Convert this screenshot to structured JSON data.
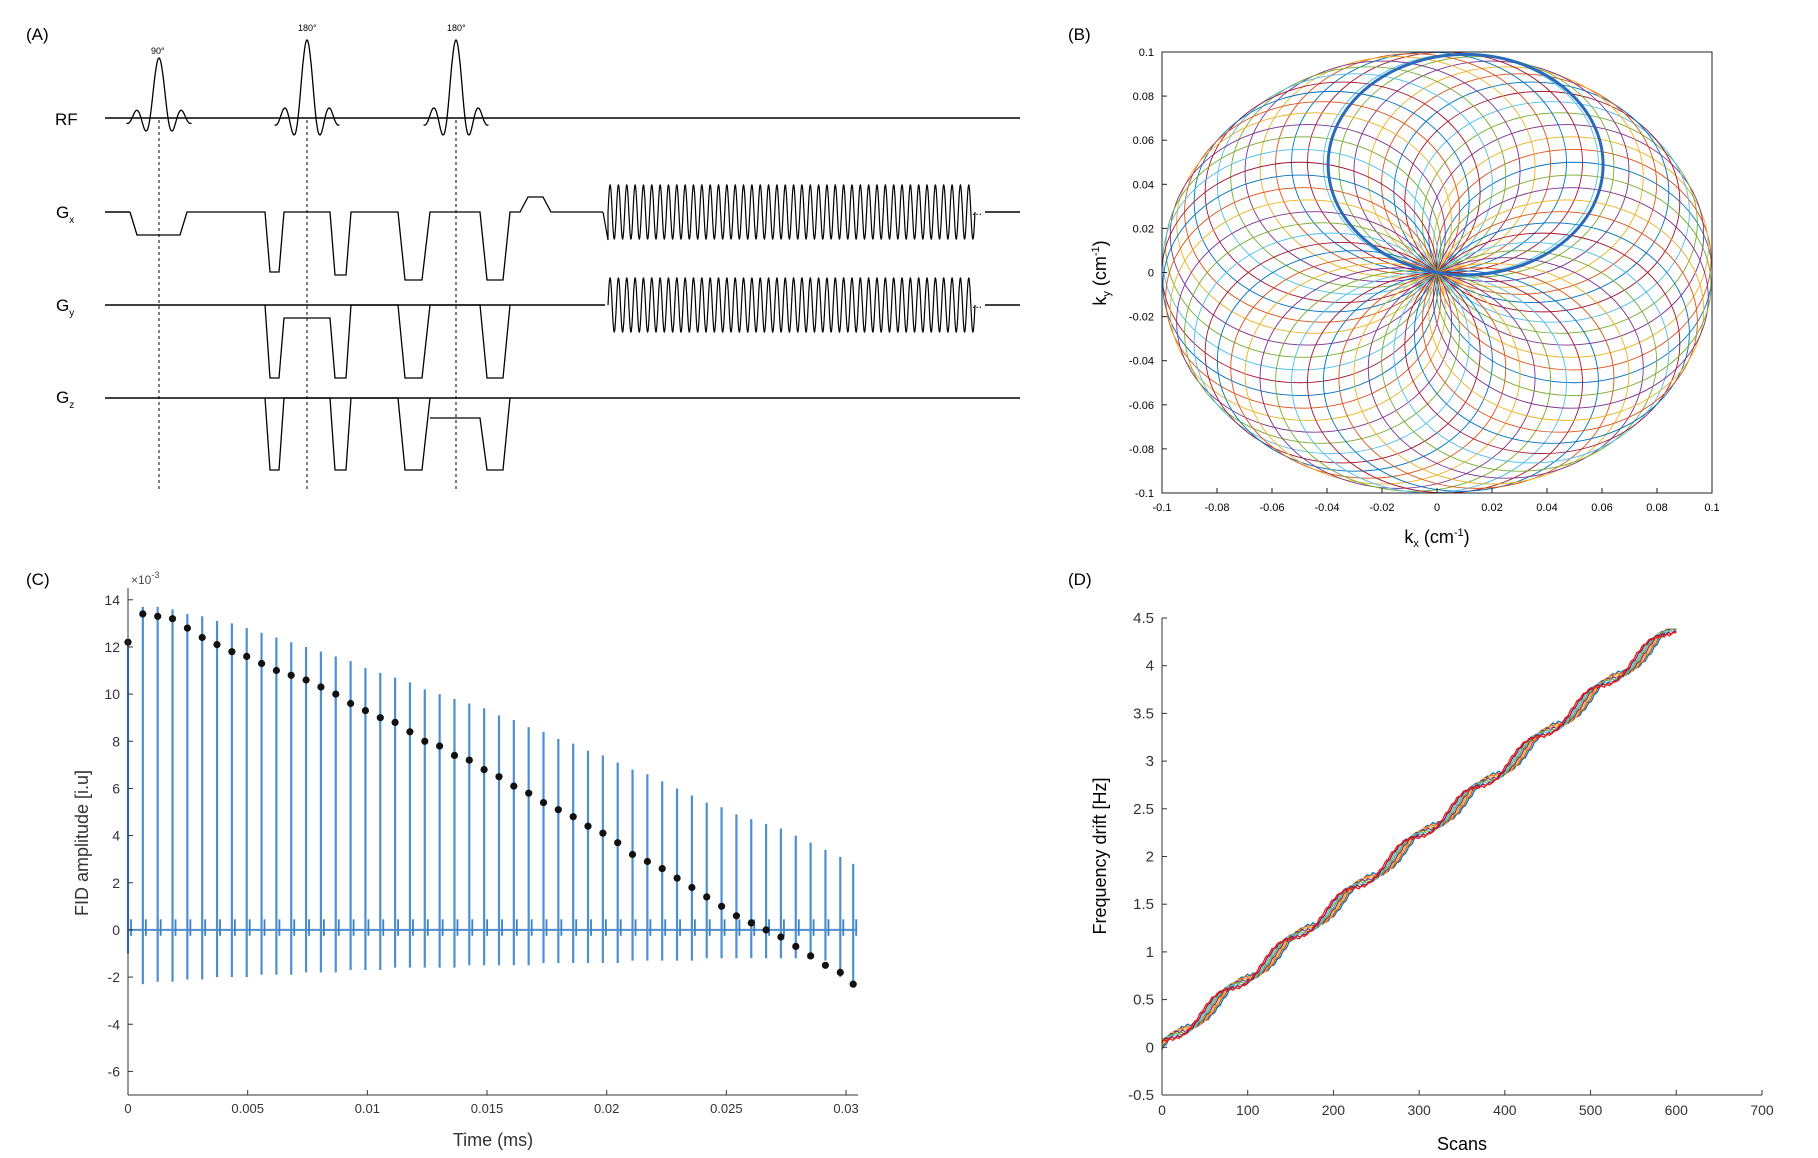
{
  "panels": {
    "a": {
      "label": "(A)"
    },
    "b": {
      "label": "(B)"
    },
    "c": {
      "label": "(C)"
    },
    "d": {
      "label": "(D)"
    }
  },
  "sequence": {
    "channels": [
      {
        "name": "RF",
        "sub": ""
      },
      {
        "name": "G",
        "sub": "x"
      },
      {
        "name": "G",
        "sub": "y"
      },
      {
        "name": "G",
        "sub": "z"
      }
    ],
    "pulses": [
      "90°",
      "180°",
      "180°"
    ],
    "ellipsis": "..."
  },
  "chart_data": [
    {
      "id": "kspace",
      "type": "line",
      "title": "",
      "xlabel_main": "k",
      "xlabel_sub": "x",
      "xlabel_unit": " (cm",
      "xlabel_sup": "-1",
      "xlabel_close": ")",
      "ylabel_main": "k",
      "ylabel_sub": "y",
      "ylabel_unit": " (cm",
      "ylabel_sup": "-1",
      "ylabel_close": ")",
      "xlim": [
        -0.1,
        0.1
      ],
      "ylim": [
        -0.1,
        0.1
      ],
      "xticks": [
        "-0.1",
        "-0.08",
        "-0.06",
        "-0.04",
        "-0.02",
        "0",
        "0.02",
        "0.04",
        "0.06",
        "0.08",
        "0.1"
      ],
      "yticks": [
        "0.1",
        "0.08",
        "0.06",
        "0.04",
        "0.02",
        "0",
        "-0.02",
        "-0.04",
        "-0.06",
        "-0.08",
        "-0.1"
      ],
      "circle_count": 54,
      "circle_radius": 0.05,
      "highlight_angle_deg": 78,
      "colors": [
        "#0072bd",
        "#d95319",
        "#edb120",
        "#7e2f8e",
        "#77ac30",
        "#4dbeee",
        "#a2142f"
      ]
    },
    {
      "id": "fid",
      "type": "line",
      "title": "",
      "xlabel": "Time (ms)",
      "ylabel": "FID amplitude [i.u]",
      "exponent_label": "×10",
      "exponent_sup": "-3",
      "xlim": [
        0,
        0.0305
      ],
      "ylim": [
        -7,
        14.5
      ],
      "xticks": [
        "0",
        "0.005",
        "0.01",
        "0.015",
        "0.02",
        "0.025",
        "0.03"
      ],
      "yticks": [
        "14",
        "12",
        "10",
        "8",
        "6",
        "4",
        "2",
        "0",
        "-2",
        "-4",
        "-6"
      ],
      "dot_times": [
        0,
        0.00062,
        0.00124,
        0.00186,
        0.00248,
        0.0031,
        0.00372,
        0.00434,
        0.00496,
        0.00558,
        0.0062,
        0.00682,
        0.00744,
        0.00806,
        0.00868,
        0.0093,
        0.00992,
        0.01054,
        0.01116,
        0.01178,
        0.0124,
        0.01302,
        0.01364,
        0.01426,
        0.01488,
        0.0155,
        0.01612,
        0.01674,
        0.01736,
        0.01798,
        0.0186,
        0.01922,
        0.01984,
        0.02046,
        0.02108,
        0.0217,
        0.02232,
        0.02294,
        0.02356,
        0.02418,
        0.0248,
        0.02542,
        0.02604,
        0.02666,
        0.02728,
        0.0279,
        0.02852,
        0.02914,
        0.02976,
        0.0303
      ],
      "dot_values": [
        12.2,
        13.4,
        13.3,
        13.2,
        12.8,
        12.4,
        12.1,
        11.8,
        11.6,
        11.3,
        11.0,
        10.8,
        10.6,
        10.3,
        10.0,
        9.6,
        9.3,
        9.0,
        8.8,
        8.4,
        8.0,
        7.8,
        7.4,
        7.2,
        6.8,
        6.5,
        6.1,
        5.8,
        5.4,
        5.1,
        4.8,
        4.4,
        4.1,
        3.7,
        3.2,
        2.9,
        2.6,
        2.2,
        1.8,
        1.4,
        1.0,
        0.6,
        0.3,
        0.0,
        -0.3,
        -0.7,
        -1.1,
        -1.5,
        -1.8,
        -2.3
      ],
      "line_tops": [
        12.3,
        13.7,
        13.7,
        13.6,
        13.4,
        13.3,
        13.1,
        13.0,
        12.8,
        12.6,
        12.4,
        12.2,
        12.0,
        11.8,
        11.6,
        11.4,
        11.1,
        10.9,
        10.7,
        10.5,
        10.2,
        10.0,
        9.8,
        9.6,
        9.4,
        9.1,
        8.9,
        8.6,
        8.4,
        8.1,
        7.9,
        7.6,
        7.4,
        7.1,
        6.8,
        6.6,
        6.3,
        6.0,
        5.7,
        5.4,
        5.2,
        4.9,
        4.7,
        4.5,
        4.3,
        4.0,
        3.7,
        3.4,
        3.1,
        2.8
      ],
      "line_bottoms": [
        -1.0,
        -2.3,
        -2.2,
        -2.2,
        -2.1,
        -2.1,
        -2.0,
        -2.0,
        -2.0,
        -1.9,
        -1.9,
        -1.9,
        -1.8,
        -1.8,
        -1.8,
        -1.7,
        -1.7,
        -1.7,
        -1.6,
        -1.6,
        -1.6,
        -1.6,
        -1.6,
        -1.5,
        -1.5,
        -1.5,
        -1.5,
        -1.5,
        -1.4,
        -1.4,
        -1.4,
        -1.4,
        -1.4,
        -1.4,
        -1.3,
        -1.3,
        -1.3,
        -1.3,
        -1.3,
        -1.2,
        -1.2,
        -1.2,
        -1.2,
        -1.2,
        -1.2,
        -1.2,
        -1.2,
        -1.3,
        -2.0,
        -2.4
      ],
      "baseline": 0,
      "line_color": "#4d8fcf",
      "dot_color": "#111111"
    },
    {
      "id": "drift",
      "type": "line",
      "title": "",
      "xlabel": "Scans",
      "ylabel": "Frequency drift [Hz]",
      "xlim": [
        0,
        700
      ],
      "ylim": [
        -0.5,
        4.5
      ],
      "xticks": [
        "0",
        "100",
        "200",
        "300",
        "400",
        "500",
        "600",
        "700"
      ],
      "yticks": [
        "4.5",
        "4",
        "3.5",
        "3",
        "2.5",
        "2",
        "1.5",
        "1",
        "0.5",
        "0",
        "-0.5"
      ],
      "series_count": 8,
      "scan_max": 600,
      "slope_hz_per_scan": 0.00735,
      "oscillation_amplitude_hz": 0.07,
      "oscillation_period_scans": 72,
      "colors": [
        "#0072bd",
        "#d95319",
        "#edb120",
        "#7e2f8e",
        "#77ac30",
        "#4dbeee",
        "#a2142f",
        "#e31a1c"
      ]
    }
  ]
}
